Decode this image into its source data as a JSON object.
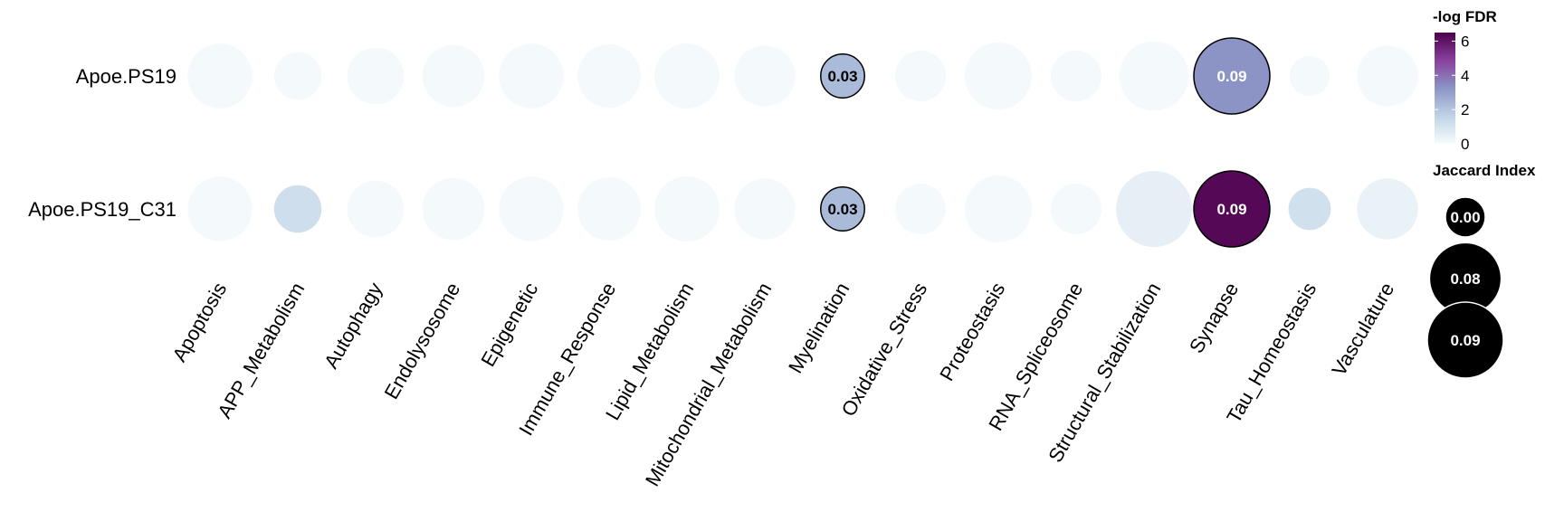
{
  "chart_data": {
    "type": "bubble-heatmap",
    "rows": [
      "Apoe.PS19",
      "Apoe.PS19_C31"
    ],
    "columns": [
      "Apoptosis",
      "APP_Metabolism",
      "Autophagy",
      "Endolysosome",
      "Epigenetic",
      "Immune_Response",
      "Lipid_Metabolism",
      "Mitochondrial_Metabolism",
      "Myelination",
      "Oxidative_Stress",
      "Proteostasis",
      "RNA_Spliceosome",
      "Structural_Stabilization",
      "Synapse",
      "Tau_Homeostasis",
      "Vasculature"
    ],
    "cells": [
      [
        {
          "jaccard": 0.065,
          "neglog_fdr": 0.1,
          "label": ""
        },
        {
          "jaccard": 0.035,
          "neglog_fdr": 0.1,
          "label": ""
        },
        {
          "jaccard": 0.05,
          "neglog_fdr": 0.1,
          "label": ""
        },
        {
          "jaccard": 0.06,
          "neglog_fdr": 0.1,
          "label": ""
        },
        {
          "jaccard": 0.065,
          "neglog_fdr": 0.1,
          "label": ""
        },
        {
          "jaccard": 0.062,
          "neglog_fdr": 0.1,
          "label": ""
        },
        {
          "jaccard": 0.066,
          "neglog_fdr": 0.1,
          "label": ""
        },
        {
          "jaccard": 0.058,
          "neglog_fdr": 0.1,
          "label": ""
        },
        {
          "jaccard": 0.03,
          "neglog_fdr": 2.3,
          "label": "0.03"
        },
        {
          "jaccard": 0.04,
          "neglog_fdr": 0.1,
          "label": ""
        },
        {
          "jaccard": 0.07,
          "neglog_fdr": 0.1,
          "label": ""
        },
        {
          "jaccard": 0.04,
          "neglog_fdr": 0.1,
          "label": ""
        },
        {
          "jaccard": 0.075,
          "neglog_fdr": 0.1,
          "label": ""
        },
        {
          "jaccard": 0.09,
          "neglog_fdr": 3.3,
          "label": "0.09"
        },
        {
          "jaccard": 0.025,
          "neglog_fdr": 0.1,
          "label": ""
        },
        {
          "jaccard": 0.058,
          "neglog_fdr": 0.1,
          "label": ""
        }
      ],
      [
        {
          "jaccard": 0.065,
          "neglog_fdr": 0.1,
          "label": ""
        },
        {
          "jaccard": 0.035,
          "neglog_fdr": 1.2,
          "label": ""
        },
        {
          "jaccard": 0.05,
          "neglog_fdr": 0.1,
          "label": ""
        },
        {
          "jaccard": 0.06,
          "neglog_fdr": 0.1,
          "label": ""
        },
        {
          "jaccard": 0.065,
          "neglog_fdr": 0.1,
          "label": ""
        },
        {
          "jaccard": 0.062,
          "neglog_fdr": 0.1,
          "label": ""
        },
        {
          "jaccard": 0.066,
          "neglog_fdr": 0.1,
          "label": ""
        },
        {
          "jaccard": 0.058,
          "neglog_fdr": 0.1,
          "label": ""
        },
        {
          "jaccard": 0.03,
          "neglog_fdr": 2.3,
          "label": "0.03"
        },
        {
          "jaccard": 0.04,
          "neglog_fdr": 0.1,
          "label": ""
        },
        {
          "jaccard": 0.07,
          "neglog_fdr": 0.1,
          "label": ""
        },
        {
          "jaccard": 0.04,
          "neglog_fdr": 0.1,
          "label": ""
        },
        {
          "jaccard": 0.09,
          "neglog_fdr": 0.5,
          "label": ""
        },
        {
          "jaccard": 0.09,
          "neglog_fdr": 6.3,
          "label": "0.09"
        },
        {
          "jaccard": 0.028,
          "neglog_fdr": 1.1,
          "label": ""
        },
        {
          "jaccard": 0.058,
          "neglog_fdr": 0.4,
          "label": ""
        }
      ]
    ],
    "color_legend": {
      "title": "-log FDR",
      "ticks": [
        0,
        2,
        4,
        6
      ],
      "ticks_text": [
        "0",
        "2",
        "4",
        "6"
      ],
      "range": [
        0,
        6.5
      ],
      "colors": [
        "#f7fcfd",
        "#bfd3e6",
        "#8c96c6",
        "#88419d",
        "#4d004b"
      ]
    },
    "size_legend": {
      "title": "Jaccard Index",
      "entries": [
        {
          "value": 0.0,
          "label": "0.00"
        },
        {
          "value": 0.08,
          "label": "0.08"
        },
        {
          "value": 0.09,
          "label": "0.09"
        }
      ],
      "color": "#000000"
    }
  }
}
